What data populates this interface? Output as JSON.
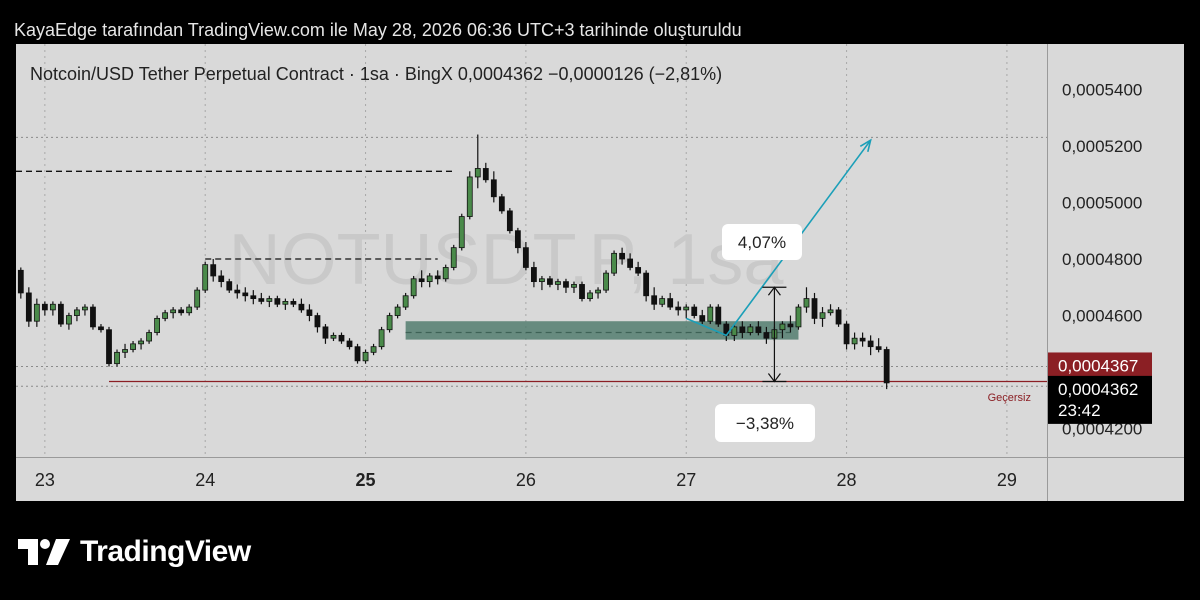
{
  "header": {
    "attribution": "KayaEdge tarafından TradingView.com ile May 28, 2026 06:36 UTC+3 tarihinde oluşturuldu"
  },
  "chart_data": {
    "type": "candlestick",
    "symbol": "Notcoin/USD Tether Perpetual Contract",
    "interval": "1sa",
    "exchange": "BingX",
    "last_price_text": "0,0004362",
    "change_text": "−0,0000126 (−2,81%)",
    "watermark": "NOTUSDT.P, 1sa",
    "y_axis": {
      "range": [
        0.00041,
        0.000556
      ],
      "ticks": [
        "0,0004200",
        "0,0004600",
        "0,0004800",
        "0,0005000",
        "0,0005200",
        "0,0005400"
      ],
      "tick_values": [
        0.00042,
        0.00046,
        0.00048,
        0.0005,
        0.00052,
        0.00054
      ]
    },
    "x_axis": {
      "labels": [
        "23",
        "24",
        "25",
        "26",
        "27",
        "28",
        "29"
      ],
      "bold_labels": [
        "25"
      ],
      "range_days": [
        22.82,
        29.25
      ]
    },
    "price_tags": [
      {
        "value": 0.0004367,
        "text": "0,0004367",
        "color": "#8b1f24"
      },
      {
        "value": 0.0004362,
        "text": "0,0004362",
        "countdown": "23:42",
        "color": "#000000"
      }
    ],
    "annotations": {
      "rise_label": "4,07%",
      "fall_label": "−3,38%",
      "invalid_label": "Geçersiz",
      "zone_color": "#4a7768",
      "arrow_color": "#1b9fb8",
      "invalid_line_color": "#8b1f24"
    },
    "up_color": "#4a8a4a",
    "down_color": "#111111",
    "candles": [
      [
        22.8,
        0.000481,
        0.000482,
        0.000474,
        0.000476
      ],
      [
        22.85,
        0.000476,
        0.000477,
        0.000466,
        0.000468
      ],
      [
        22.9,
        0.000468,
        0.00047,
        0.000456,
        0.000458
      ],
      [
        22.95,
        0.000458,
        0.000466,
        0.000456,
        0.000464
      ],
      [
        23.0,
        0.000464,
        0.000465,
        0.00046,
        0.000462
      ],
      [
        23.05,
        0.000462,
        0.000465,
        0.00046,
        0.000464
      ],
      [
        23.1,
        0.000464,
        0.000465,
        0.000456,
        0.000457
      ],
      [
        23.15,
        0.000457,
        0.000461,
        0.000455,
        0.00046
      ],
      [
        23.2,
        0.00046,
        0.000463,
        0.000458,
        0.000462
      ],
      [
        23.25,
        0.000462,
        0.000464,
        0.00046,
        0.000463
      ],
      [
        23.3,
        0.000463,
        0.000464,
        0.000455,
        0.000456
      ],
      [
        23.35,
        0.000456,
        0.000457,
        0.000454,
        0.000455
      ],
      [
        23.4,
        0.000455,
        0.000456,
        0.000442,
        0.000443
      ],
      [
        23.45,
        0.000443,
        0.000448,
        0.000442,
        0.000447
      ],
      [
        23.5,
        0.000447,
        0.00045,
        0.000445,
        0.000448
      ],
      [
        23.55,
        0.000448,
        0.000451,
        0.000447,
        0.00045
      ],
      [
        23.6,
        0.00045,
        0.000452,
        0.000448,
        0.000451
      ],
      [
        23.65,
        0.000451,
        0.000455,
        0.00045,
        0.000454
      ],
      [
        23.7,
        0.000454,
        0.00046,
        0.000453,
        0.000459
      ],
      [
        23.75,
        0.000459,
        0.000462,
        0.000458,
        0.000461
      ],
      [
        23.8,
        0.000461,
        0.000463,
        0.000459,
        0.000462
      ],
      [
        23.85,
        0.000462,
        0.000463,
        0.00046,
        0.000461
      ],
      [
        23.9,
        0.000461,
        0.000464,
        0.00046,
        0.000463
      ],
      [
        23.95,
        0.000463,
        0.00047,
        0.000462,
        0.000469
      ],
      [
        24.0,
        0.000469,
        0.000479,
        0.000468,
        0.000478
      ],
      [
        24.05,
        0.000478,
        0.00048,
        0.000472,
        0.000474
      ],
      [
        24.1,
        0.000474,
        0.000476,
        0.00047,
        0.000472
      ],
      [
        24.15,
        0.000472,
        0.000473,
        0.000468,
        0.000469
      ],
      [
        24.2,
        0.000469,
        0.000471,
        0.000466,
        0.000468
      ],
      [
        24.25,
        0.000468,
        0.00047,
        0.000465,
        0.000467
      ],
      [
        24.3,
        0.000467,
        0.000469,
        0.000464,
        0.000466
      ],
      [
        24.35,
        0.000466,
        0.000468,
        0.000464,
        0.000465
      ],
      [
        24.4,
        0.000465,
        0.000467,
        0.000463,
        0.000466
      ],
      [
        24.45,
        0.000466,
        0.000467,
        0.000463,
        0.000464
      ],
      [
        24.5,
        0.000464,
        0.000466,
        0.000462,
        0.000465
      ],
      [
        24.55,
        0.000465,
        0.000466,
        0.000463,
        0.000464
      ],
      [
        24.6,
        0.000464,
        0.000466,
        0.000461,
        0.000462
      ],
      [
        24.65,
        0.000462,
        0.000464,
        0.000458,
        0.00046
      ],
      [
        24.7,
        0.00046,
        0.000461,
        0.000454,
        0.000456
      ],
      [
        24.75,
        0.000456,
        0.000457,
        0.00045,
        0.000452
      ],
      [
        24.8,
        0.000452,
        0.000454,
        0.000451,
        0.000453
      ],
      [
        24.85,
        0.000453,
        0.000454,
        0.00045,
        0.000451
      ],
      [
        24.9,
        0.000451,
        0.000452,
        0.000448,
        0.000449
      ],
      [
        24.95,
        0.000449,
        0.00045,
        0.000443,
        0.000444
      ],
      [
        25.0,
        0.000444,
        0.000448,
        0.000443,
        0.000447
      ],
      [
        25.05,
        0.000447,
        0.00045,
        0.000446,
        0.000449
      ],
      [
        25.1,
        0.000449,
        0.000456,
        0.000448,
        0.000455
      ],
      [
        25.15,
        0.000455,
        0.000461,
        0.000454,
        0.00046
      ],
      [
        25.2,
        0.00046,
        0.000464,
        0.000459,
        0.000463
      ],
      [
        25.25,
        0.000463,
        0.000468,
        0.000462,
        0.000467
      ],
      [
        25.3,
        0.000467,
        0.000474,
        0.000466,
        0.000473
      ],
      [
        25.35,
        0.000473,
        0.000476,
        0.00047,
        0.000472
      ],
      [
        25.4,
        0.000472,
        0.000475,
        0.00047,
        0.000474
      ],
      [
        25.45,
        0.000474,
        0.000476,
        0.000471,
        0.000473
      ],
      [
        25.5,
        0.000473,
        0.000478,
        0.000472,
        0.000477
      ],
      [
        25.55,
        0.000477,
        0.000485,
        0.000476,
        0.000484
      ],
      [
        25.6,
        0.000484,
        0.000496,
        0.000483,
        0.000495
      ],
      [
        25.65,
        0.000495,
        0.000511,
        0.000494,
        0.000509
      ],
      [
        25.7,
        0.000509,
        0.000524,
        0.000505,
        0.000512
      ],
      [
        25.75,
        0.000512,
        0.000514,
        0.000507,
        0.000508
      ],
      [
        25.8,
        0.000508,
        0.000511,
        0.0005,
        0.000502
      ],
      [
        25.85,
        0.000502,
        0.000503,
        0.000496,
        0.000497
      ],
      [
        25.9,
        0.000497,
        0.000498,
        0.000489,
        0.00049
      ],
      [
        25.95,
        0.00049,
        0.000491,
        0.000482,
        0.000484
      ],
      [
        26.0,
        0.000484,
        0.000486,
        0.000476,
        0.000477
      ],
      [
        26.05,
        0.000477,
        0.000479,
        0.00047,
        0.000472
      ],
      [
        26.1,
        0.000472,
        0.000474,
        0.000469,
        0.000473
      ],
      [
        26.15,
        0.000473,
        0.000474,
        0.00047,
        0.000471
      ],
      [
        26.2,
        0.000471,
        0.000473,
        0.000469,
        0.000472
      ],
      [
        26.25,
        0.000472,
        0.000473,
        0.000468,
        0.00047
      ],
      [
        26.3,
        0.00047,
        0.000472,
        0.000468,
        0.000471
      ],
      [
        26.35,
        0.000471,
        0.000472,
        0.000465,
        0.000466
      ],
      [
        26.4,
        0.000466,
        0.000469,
        0.000465,
        0.000468
      ],
      [
        26.45,
        0.000468,
        0.00047,
        0.000466,
        0.000469
      ],
      [
        26.5,
        0.000469,
        0.000476,
        0.000468,
        0.000475
      ],
      [
        26.55,
        0.000475,
        0.000483,
        0.000474,
        0.000482
      ],
      [
        26.6,
        0.000482,
        0.000484,
        0.000478,
        0.00048
      ],
      [
        26.65,
        0.00048,
        0.000482,
        0.000476,
        0.000477
      ],
      [
        26.7,
        0.000477,
        0.000479,
        0.000474,
        0.000475
      ],
      [
        26.75,
        0.000475,
        0.000476,
        0.000465,
        0.000467
      ],
      [
        26.8,
        0.000467,
        0.00047,
        0.000462,
        0.000464
      ],
      [
        26.85,
        0.000464,
        0.000467,
        0.000463,
        0.000466
      ],
      [
        26.9,
        0.000466,
        0.000468,
        0.000462,
        0.000463
      ],
      [
        26.95,
        0.000463,
        0.000465,
        0.00046,
        0.000462
      ],
      [
        27.0,
        0.000462,
        0.000464,
        0.000459,
        0.000463
      ],
      [
        27.05,
        0.000463,
        0.000464,
        0.000459,
        0.00046
      ],
      [
        27.1,
        0.00046,
        0.000462,
        0.000457,
        0.000458
      ],
      [
        27.15,
        0.000458,
        0.000464,
        0.000457,
        0.000463
      ],
      [
        27.2,
        0.000463,
        0.000464,
        0.000456,
        0.000457
      ],
      [
        27.25,
        0.000457,
        0.000458,
        0.000451,
        0.000453
      ],
      [
        27.3,
        0.000453,
        0.000457,
        0.000451,
        0.000456
      ],
      [
        27.35,
        0.000456,
        0.000458,
        0.000452,
        0.000454
      ],
      [
        27.4,
        0.000454,
        0.000457,
        0.000453,
        0.000456
      ],
      [
        27.45,
        0.000456,
        0.000458,
        0.000453,
        0.000454
      ],
      [
        27.5,
        0.000454,
        0.000456,
        0.00045,
        0.000452
      ],
      [
        27.55,
        0.000452,
        0.000456,
        0.000451,
        0.000455
      ],
      [
        27.6,
        0.000455,
        0.000458,
        0.000452,
        0.000457
      ],
      [
        27.65,
        0.000457,
        0.00046,
        0.000454,
        0.000456
      ],
      [
        27.7,
        0.000456,
        0.000464,
        0.000455,
        0.000463
      ],
      [
        27.75,
        0.000463,
        0.00047,
        0.000461,
        0.000466
      ],
      [
        27.8,
        0.000466,
        0.000468,
        0.000457,
        0.000459
      ],
      [
        27.85,
        0.000459,
        0.000463,
        0.000456,
        0.000461
      ],
      [
        27.9,
        0.000461,
        0.000464,
        0.00046,
        0.000462
      ],
      [
        27.95,
        0.000462,
        0.000463,
        0.000456,
        0.000457
      ],
      [
        28.0,
        0.000457,
        0.000458,
        0.000448,
        0.00045
      ],
      [
        28.05,
        0.00045,
        0.000454,
        0.000448,
        0.000452
      ],
      [
        28.1,
        0.000452,
        0.000454,
        0.000449,
        0.000451
      ],
      [
        28.15,
        0.000451,
        0.000453,
        0.000446,
        0.000449
      ],
      [
        28.2,
        0.000449,
        0.000452,
        0.000447,
        0.000448
      ],
      [
        28.25,
        0.000448,
        0.000449,
        0.000434,
        0.0004362
      ]
    ],
    "horizontal_levels": [
      {
        "value": 0.000511,
        "x_from": 22.82,
        "x_to": 25.55,
        "style": "dashed"
      },
      {
        "value": 0.00048,
        "x_from": 24.0,
        "x_to": 25.45,
        "style": "dashed"
      },
      {
        "value": 0.000454,
        "x_from": 25.25,
        "x_to": 27.65,
        "style": "dashed"
      },
      {
        "value": 0.0004367,
        "x_from": 23.4,
        "x_to": 29.25,
        "style": "solid"
      }
    ],
    "dotted_levels": [
      0.000523,
      0.000442,
      0.000435
    ],
    "zone": {
      "x_from": 25.25,
      "x_to": 27.7,
      "top": 0.000458,
      "bottom": 0.0004515
    },
    "projection": [
      [
        27.0,
        0.000459
      ],
      [
        27.25,
        0.000453
      ],
      [
        28.15,
        0.000522
      ]
    ],
    "measure": {
      "x": 27.55,
      "top": 0.00047,
      "bottom": 0.0004367
    }
  },
  "footer": {
    "brand": "TradingView"
  }
}
